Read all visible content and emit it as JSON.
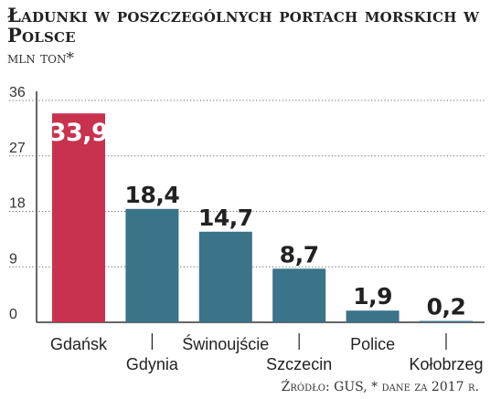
{
  "title": "Ładunki w poszczególnych portach morskich w Polsce",
  "subtitle": "mln ton*",
  "source": "Źródło: GUS, * dane za 2017 r.",
  "colors": {
    "highlight": "#c8324e",
    "bar": "#3b7389",
    "axis": "#333333",
    "grid": "#666666"
  },
  "chart_data": {
    "type": "bar",
    "title": "Ładunki w poszczególnych portach morskich w Polsce",
    "ylabel": "mln ton*",
    "xlabel": "",
    "ylim": [
      0,
      36
    ],
    "yticks": [
      0,
      9,
      18,
      27,
      36
    ],
    "grid": true,
    "categories": [
      "Gdańsk",
      "Gdynia",
      "Świnoujście",
      "Szczecin",
      "Police",
      "Kołobrzeg"
    ],
    "values": [
      33.9,
      18.4,
      14.7,
      8.7,
      1.9,
      0.2
    ],
    "value_labels": [
      "33,9",
      "18,4",
      "14,7",
      "8,7",
      "1,9",
      "0,2"
    ]
  }
}
